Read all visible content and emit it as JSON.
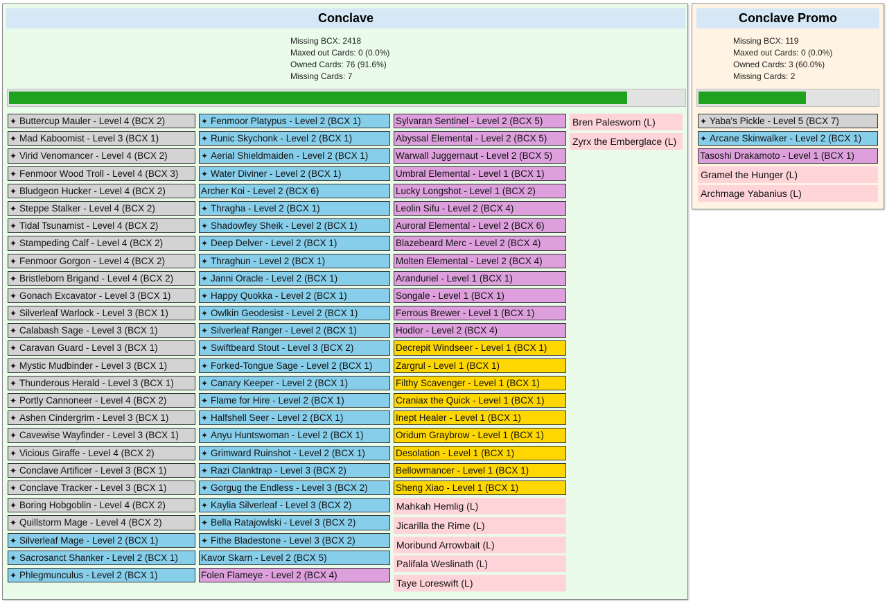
{
  "colors": {
    "gray": "#d3d3d3",
    "blue": "#87ceeb",
    "purple": "#dda0dd",
    "gold": "#ffd700",
    "legendary": "#ffd4d8",
    "progress": "#1fa21f"
  },
  "icon": "sparkle-icon",
  "conclave": {
    "title": "Conclave",
    "missing_bcx": "Missing BCX: 2418",
    "maxed": "Maxed out Cards: 0 (0.0%)",
    "owned": "Owned Cards: 76 (91.6%)",
    "missing_cards": "Missing Cards: 7",
    "progress_fraction": 0.916,
    "columns": [
      [
        {
          "name": "Buttercup Mauler - Level 4 (BCX 2)",
          "color": "gray",
          "owned": true
        },
        {
          "name": "Mad Kaboomist - Level 3 (BCX 1)",
          "color": "gray",
          "owned": true
        },
        {
          "name": "Virid Venomancer - Level 4 (BCX 2)",
          "color": "gray",
          "owned": true
        },
        {
          "name": "Fenmoor Wood Troll - Level 4 (BCX 3)",
          "color": "gray",
          "owned": true
        },
        {
          "name": "Bludgeon Hucker - Level 4 (BCX 2)",
          "color": "gray",
          "owned": true
        },
        {
          "name": "Steppe Stalker - Level 4 (BCX 2)",
          "color": "gray",
          "owned": true
        },
        {
          "name": "Tidal Tsunamist - Level 4 (BCX 2)",
          "color": "gray",
          "owned": true
        },
        {
          "name": "Stampeding Calf - Level 4 (BCX 2)",
          "color": "gray",
          "owned": true
        },
        {
          "name": "Fenmoor Gorgon - Level 4 (BCX 2)",
          "color": "gray",
          "owned": true
        },
        {
          "name": "Bristleborn Brigand - Level 4 (BCX 2)",
          "color": "gray",
          "owned": true
        },
        {
          "name": "Gonach Excavator - Level 3 (BCX 1)",
          "color": "gray",
          "owned": true
        },
        {
          "name": "Silverleaf Warlock - Level 3 (BCX 1)",
          "color": "gray",
          "owned": true
        },
        {
          "name": "Calabash Sage - Level 3 (BCX 1)",
          "color": "gray",
          "owned": true
        },
        {
          "name": "Caravan Guard - Level 3 (BCX 1)",
          "color": "gray",
          "owned": true
        },
        {
          "name": "Mystic Mudbinder - Level 3 (BCX 1)",
          "color": "gray",
          "owned": true
        },
        {
          "name": "Thunderous Herald - Level 3 (BCX 1)",
          "color": "gray",
          "owned": true
        },
        {
          "name": "Portly Cannoneer - Level 4 (BCX 2)",
          "color": "gray",
          "owned": true
        },
        {
          "name": "Ashen Cindergrim - Level 3 (BCX 1)",
          "color": "gray",
          "owned": true
        },
        {
          "name": "Cavewise Wayfinder - Level 3 (BCX 1)",
          "color": "gray",
          "owned": true
        },
        {
          "name": "Vicious Giraffe - Level 4 (BCX 2)",
          "color": "gray",
          "owned": true
        },
        {
          "name": "Conclave Artificer - Level 3 (BCX 1)",
          "color": "gray",
          "owned": true
        },
        {
          "name": "Conclave Tracker - Level 3 (BCX 1)",
          "color": "gray",
          "owned": true
        },
        {
          "name": "Boring Hobgoblin - Level 4 (BCX 2)",
          "color": "gray",
          "owned": true
        },
        {
          "name": "Quillstorm Mage - Level 4 (BCX 2)",
          "color": "gray",
          "owned": true
        },
        {
          "name": "Silverleaf Mage - Level 2 (BCX 1)",
          "color": "blue",
          "owned": true
        },
        {
          "name": "Sacrosanct Shanker - Level 2 (BCX 1)",
          "color": "blue",
          "owned": true
        },
        {
          "name": "Phlegmunculus - Level 2 (BCX 1)",
          "color": "blue",
          "owned": true
        }
      ],
      [
        {
          "name": "Fenmoor Platypus - Level 2 (BCX 1)",
          "color": "blue",
          "owned": true
        },
        {
          "name": "Runic Skychonk - Level 2 (BCX 1)",
          "color": "blue",
          "owned": true
        },
        {
          "name": "Aerial Shieldmaiden - Level 2 (BCX 1)",
          "color": "blue",
          "owned": true
        },
        {
          "name": "Water Diviner - Level 2 (BCX 1)",
          "color": "blue",
          "owned": true
        },
        {
          "name": "Archer Koi - Level 2 (BCX 6)",
          "color": "blue",
          "owned": false
        },
        {
          "name": "Thragha - Level 2 (BCX 1)",
          "color": "blue",
          "owned": true
        },
        {
          "name": "Shadowfey Sheik - Level 2 (BCX 1)",
          "color": "blue",
          "owned": true
        },
        {
          "name": "Deep Delver - Level 2 (BCX 1)",
          "color": "blue",
          "owned": true
        },
        {
          "name": "Thraghun - Level 2 (BCX 1)",
          "color": "blue",
          "owned": true
        },
        {
          "name": "Janni Oracle - Level 2 (BCX 1)",
          "color": "blue",
          "owned": true
        },
        {
          "name": "Happy Quokka - Level 2 (BCX 1)",
          "color": "blue",
          "owned": true
        },
        {
          "name": "Owlkin Geodesist - Level 2 (BCX 1)",
          "color": "blue",
          "owned": true
        },
        {
          "name": "Silverleaf Ranger - Level 2 (BCX 1)",
          "color": "blue",
          "owned": true
        },
        {
          "name": "Swiftbeard Stout - Level 3 (BCX 2)",
          "color": "blue",
          "owned": true
        },
        {
          "name": "Forked-Tongue Sage - Level 2 (BCX 1)",
          "color": "blue",
          "owned": true
        },
        {
          "name": "Canary Keeper - Level 2 (BCX 1)",
          "color": "blue",
          "owned": true
        },
        {
          "name": "Flame for Hire - Level 2 (BCX 1)",
          "color": "blue",
          "owned": true
        },
        {
          "name": "Halfshell Seer - Level 2 (BCX 1)",
          "color": "blue",
          "owned": true
        },
        {
          "name": "Anyu Huntswoman - Level 2 (BCX 1)",
          "color": "blue",
          "owned": true
        },
        {
          "name": "Grimward Ruinshot - Level 2 (BCX 1)",
          "color": "blue",
          "owned": true
        },
        {
          "name": "Razi Clanktrap - Level 3 (BCX 2)",
          "color": "blue",
          "owned": true
        },
        {
          "name": "Gorgug the Endless - Level 3 (BCX 2)",
          "color": "blue",
          "owned": true
        },
        {
          "name": "Kaylia Silverleaf - Level 3 (BCX 2)",
          "color": "blue",
          "owned": true
        },
        {
          "name": "Bella Ratajowlski - Level 3 (BCX 2)",
          "color": "blue",
          "owned": true
        },
        {
          "name": "Fithe Bladestone - Level 3 (BCX 2)",
          "color": "blue",
          "owned": true
        },
        {
          "name": "Kavor Skarn - Level 2 (BCX 5)",
          "color": "blue",
          "owned": false
        },
        {
          "name": "Folen Flameye - Level 2 (BCX 4)",
          "color": "purple",
          "owned": false
        }
      ],
      [
        {
          "name": "Sylvaran Sentinel - Level 2 (BCX 5)",
          "color": "purple",
          "owned": false
        },
        {
          "name": "Abyssal Elemental - Level 2 (BCX 5)",
          "color": "purple",
          "owned": false
        },
        {
          "name": "Warwall Juggernaut - Level 2 (BCX 5)",
          "color": "purple",
          "owned": false
        },
        {
          "name": "Umbral Elemental - Level 1 (BCX 1)",
          "color": "purple",
          "owned": false
        },
        {
          "name": "Lucky Longshot - Level 1 (BCX 2)",
          "color": "purple",
          "owned": false
        },
        {
          "name": "Leolin Sifu - Level 2 (BCX 4)",
          "color": "purple",
          "owned": false
        },
        {
          "name": "Auroral Elemental - Level 2 (BCX 6)",
          "color": "purple",
          "owned": false
        },
        {
          "name": "Blazebeard Merc - Level 2 (BCX 4)",
          "color": "purple",
          "owned": false
        },
        {
          "name": "Molten Elemental - Level 2 (BCX 4)",
          "color": "purple",
          "owned": false
        },
        {
          "name": "Aranduriel - Level 1 (BCX 1)",
          "color": "purple",
          "owned": false
        },
        {
          "name": "Songale - Level 1 (BCX 1)",
          "color": "purple",
          "owned": false
        },
        {
          "name": "Ferrous Brewer - Level 1 (BCX 1)",
          "color": "purple",
          "owned": false
        },
        {
          "name": "Hodlor - Level 2 (BCX 4)",
          "color": "purple",
          "owned": false
        },
        {
          "name": "Decrepit Windseer - Level 1 (BCX 1)",
          "color": "gold",
          "owned": false
        },
        {
          "name": "Zargrul - Level 1 (BCX 1)",
          "color": "gold",
          "owned": false
        },
        {
          "name": "Filthy Scavenger - Level 1 (BCX 1)",
          "color": "gold",
          "owned": false
        },
        {
          "name": "Craniax the Quick - Level 1 (BCX 1)",
          "color": "gold",
          "owned": false
        },
        {
          "name": "Inept Healer - Level 1 (BCX 1)",
          "color": "gold",
          "owned": false
        },
        {
          "name": "Oridum Graybrow - Level 1 (BCX 1)",
          "color": "gold",
          "owned": false
        },
        {
          "name": "Desolation - Level 1 (BCX 1)",
          "color": "gold",
          "owned": false
        },
        {
          "name": "Bellowmancer - Level 1 (BCX 1)",
          "color": "gold",
          "owned": false
        },
        {
          "name": "Sheng Xiao - Level 1 (BCX 1)",
          "color": "gold",
          "owned": false
        }
      ]
    ],
    "missing_list_col3": [
      "Mahkah Hemlig (L)",
      "Jicarilla the Rime (L)",
      "Moribund Arrowbait (L)",
      "Palifala Weslinath (L)",
      "Taye Loreswift (L)"
    ],
    "missing_list_col4": [
      "Bren Palesworn (L)",
      "Zyrx the Emberglace (L)"
    ]
  },
  "promo": {
    "title": "Conclave Promo",
    "missing_bcx": "Missing BCX: 119",
    "maxed": "Maxed out Cards: 0 (0.0%)",
    "owned": "Owned Cards: 3 (60.0%)",
    "missing_cards": "Missing Cards: 2",
    "progress_fraction": 0.6,
    "cards": [
      {
        "name": "Yaba's Pickle - Level 5 (BCX 7)",
        "color": "gray",
        "owned": true
      },
      {
        "name": "Arcane Skinwalker - Level 2 (BCX 1)",
        "color": "blue",
        "owned": true
      },
      {
        "name": "Tasoshi Drakamoto - Level 1 (BCX 1)",
        "color": "purple",
        "owned": false
      }
    ],
    "missing_list": [
      "Gramel the Hunger (L)",
      "Archmage Yabanius (L)"
    ]
  }
}
